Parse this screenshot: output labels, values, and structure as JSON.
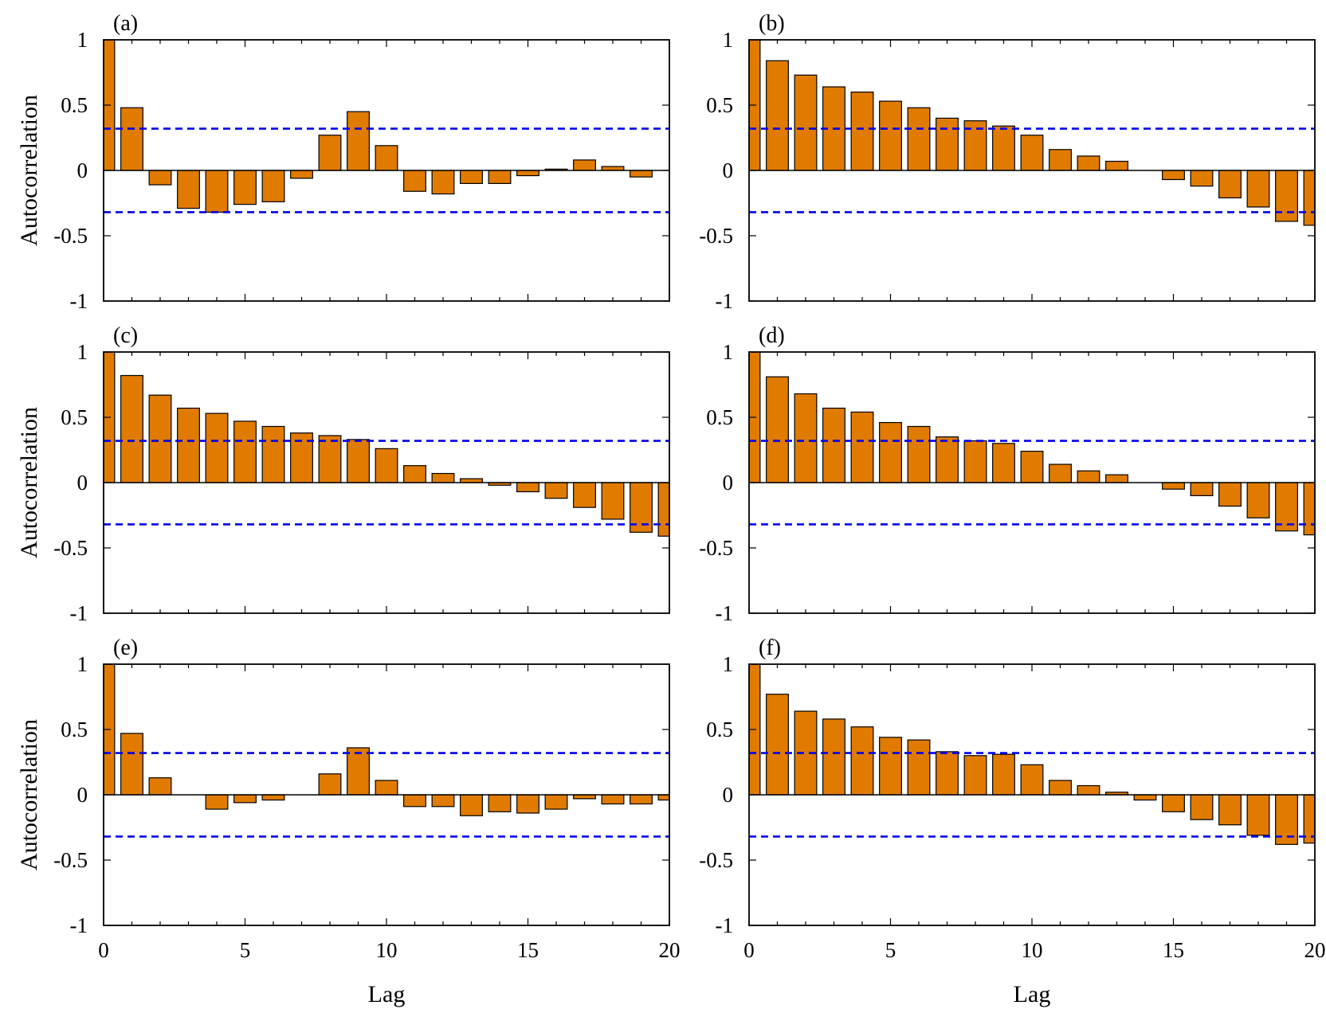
{
  "figure": {
    "xlabel": "Lag",
    "ylabel": "Autocorrelation",
    "x_tick_labels": [
      "0",
      "5",
      "10",
      "15",
      "20"
    ],
    "y_tick_labels": [
      "1",
      "0.5",
      "0",
      "-0.5",
      "-1"
    ],
    "colors": {
      "bar": "#e07b00",
      "bar_edge": "#000000",
      "bound": "#0000ee",
      "frame": "#000000"
    }
  },
  "chart_data": [
    {
      "type": "bar",
      "label": "(a)",
      "xlabel": "Lag",
      "ylabel": "Autocorrelation",
      "xlim": [
        0,
        20
      ],
      "ylim": [
        -1,
        1
      ],
      "x": [
        0,
        1,
        2,
        3,
        4,
        5,
        6,
        7,
        8,
        9,
        10,
        11,
        12,
        13,
        14,
        15,
        16,
        17,
        18,
        19,
        20
      ],
      "values": [
        1.0,
        0.48,
        -0.11,
        -0.29,
        -0.32,
        -0.26,
        -0.24,
        -0.06,
        0.27,
        0.45,
        0.19,
        -0.16,
        -0.18,
        -0.1,
        -0.1,
        -0.04,
        0.01,
        0.08,
        0.03,
        -0.05,
        0.0
      ],
      "bounds": [
        0.32,
        -0.32
      ]
    },
    {
      "type": "bar",
      "label": "(b)",
      "xlabel": "Lag",
      "ylabel": "",
      "xlim": [
        0,
        20
      ],
      "ylim": [
        -1,
        1
      ],
      "x": [
        0,
        1,
        2,
        3,
        4,
        5,
        6,
        7,
        8,
        9,
        10,
        11,
        12,
        13,
        14,
        15,
        16,
        17,
        18,
        19,
        20
      ],
      "values": [
        1.0,
        0.84,
        0.73,
        0.64,
        0.6,
        0.53,
        0.48,
        0.4,
        0.38,
        0.34,
        0.27,
        0.16,
        0.11,
        0.07,
        0.0,
        -0.07,
        -0.12,
        -0.21,
        -0.28,
        -0.39,
        -0.42
      ],
      "bounds": [
        0.32,
        -0.32
      ]
    },
    {
      "type": "bar",
      "label": "(c)",
      "xlabel": "Lag",
      "ylabel": "Autocorrelation",
      "xlim": [
        0,
        20
      ],
      "ylim": [
        -1,
        1
      ],
      "x": [
        0,
        1,
        2,
        3,
        4,
        5,
        6,
        7,
        8,
        9,
        10,
        11,
        12,
        13,
        14,
        15,
        16,
        17,
        18,
        19,
        20
      ],
      "values": [
        1.0,
        0.82,
        0.67,
        0.57,
        0.53,
        0.47,
        0.43,
        0.38,
        0.36,
        0.33,
        0.26,
        0.13,
        0.07,
        0.03,
        -0.02,
        -0.07,
        -0.12,
        -0.19,
        -0.28,
        -0.38,
        -0.41
      ],
      "bounds": [
        0.32,
        -0.32
      ]
    },
    {
      "type": "bar",
      "label": "(d)",
      "xlabel": "Lag",
      "ylabel": "",
      "xlim": [
        0,
        20
      ],
      "ylim": [
        -1,
        1
      ],
      "x": [
        0,
        1,
        2,
        3,
        4,
        5,
        6,
        7,
        8,
        9,
        10,
        11,
        12,
        13,
        14,
        15,
        16,
        17,
        18,
        19,
        20
      ],
      "values": [
        1.0,
        0.81,
        0.68,
        0.57,
        0.54,
        0.46,
        0.43,
        0.35,
        0.32,
        0.3,
        0.24,
        0.14,
        0.09,
        0.06,
        0.0,
        -0.05,
        -0.1,
        -0.18,
        -0.27,
        -0.37,
        -0.4
      ],
      "bounds": [
        0.32,
        -0.32
      ]
    },
    {
      "type": "bar",
      "label": "(e)",
      "xlabel": "Lag",
      "ylabel": "Autocorrelation",
      "xlim": [
        0,
        20
      ],
      "ylim": [
        -1,
        1
      ],
      "x": [
        0,
        1,
        2,
        3,
        4,
        5,
        6,
        7,
        8,
        9,
        10,
        11,
        12,
        13,
        14,
        15,
        16,
        17,
        18,
        19,
        20
      ],
      "values": [
        1.0,
        0.47,
        0.13,
        0.0,
        -0.11,
        -0.06,
        -0.04,
        0.0,
        0.16,
        0.36,
        0.11,
        -0.09,
        -0.09,
        -0.16,
        -0.13,
        -0.14,
        -0.11,
        -0.03,
        -0.07,
        -0.07,
        -0.04
      ],
      "bounds": [
        0.32,
        -0.32
      ]
    },
    {
      "type": "bar",
      "label": "(f)",
      "xlabel": "Lag",
      "ylabel": "",
      "xlim": [
        0,
        20
      ],
      "ylim": [
        -1,
        1
      ],
      "x": [
        0,
        1,
        2,
        3,
        4,
        5,
        6,
        7,
        8,
        9,
        10,
        11,
        12,
        13,
        14,
        15,
        16,
        17,
        18,
        19,
        20
      ],
      "values": [
        1.0,
        0.77,
        0.64,
        0.58,
        0.52,
        0.44,
        0.42,
        0.33,
        0.3,
        0.31,
        0.23,
        0.11,
        0.07,
        0.02,
        -0.04,
        -0.13,
        -0.19,
        -0.23,
        -0.31,
        -0.38,
        -0.37
      ],
      "bounds": [
        0.32,
        -0.32
      ]
    }
  ]
}
